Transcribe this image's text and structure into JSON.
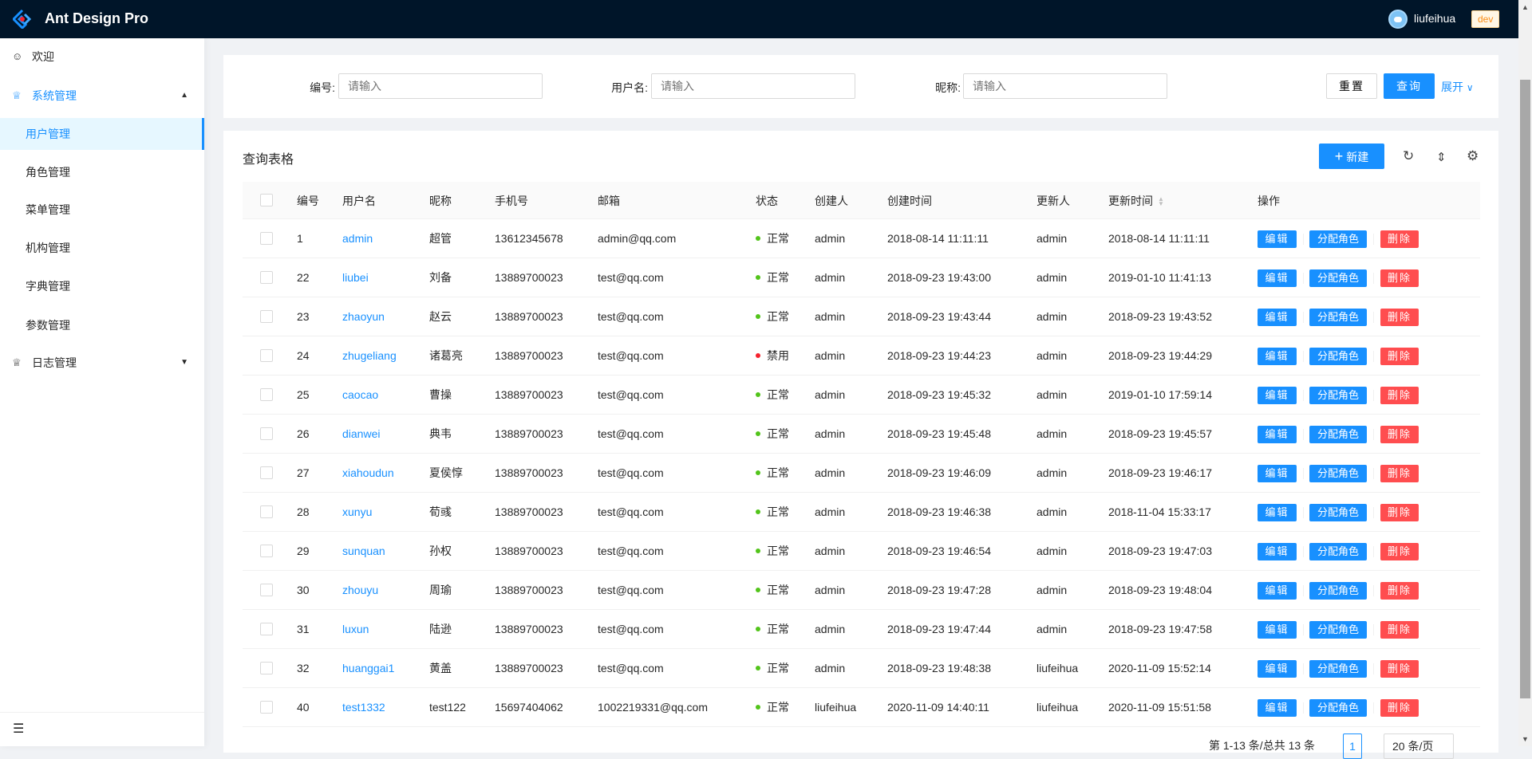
{
  "header": {
    "brand": "Ant Design Pro",
    "username": "liufeihua",
    "env_tag": "dev"
  },
  "sidebar": {
    "items": [
      {
        "label": "欢迎",
        "icon": "smile-icon"
      },
      {
        "label": "系统管理",
        "icon": "crown-icon",
        "expanded": true
      },
      {
        "label": "用户管理",
        "selected": true
      },
      {
        "label": "角色管理"
      },
      {
        "label": "菜单管理"
      },
      {
        "label": "机构管理"
      },
      {
        "label": "字典管理"
      },
      {
        "label": "参数管理"
      },
      {
        "label": "日志管理",
        "icon": "crown-icon",
        "expanded": false
      }
    ]
  },
  "search": {
    "id_label": "编号:",
    "id_placeholder": "请输入",
    "username_label": "用户名:",
    "username_placeholder": "请输入",
    "nickname_label": "昵称:",
    "nickname_placeholder": "请输入",
    "reset": "重置",
    "query": "查询",
    "expand": "展开"
  },
  "table": {
    "title": "查询表格",
    "new_button": "新建",
    "columns": [
      "编号",
      "用户名",
      "昵称",
      "手机号",
      "邮箱",
      "状态",
      "创建人",
      "创建时间",
      "更新人",
      "更新时间",
      "操作"
    ],
    "actions": {
      "edit": "编辑",
      "assign": "分配角色",
      "delete": "删除"
    },
    "status_colors": {
      "正常": "#52c41a",
      "禁用": "#f5222d"
    },
    "rows": [
      [
        "1",
        "admin",
        "超管",
        "13612345678",
        "admin@qq.com",
        "正常",
        "admin",
        "2018-08-14 11:11:11",
        "admin",
        "2018-08-14 11:11:11"
      ],
      [
        "22",
        "liubei",
        "刘备",
        "13889700023",
        "test@qq.com",
        "正常",
        "admin",
        "2018-09-23 19:43:00",
        "admin",
        "2019-01-10 11:41:13"
      ],
      [
        "23",
        "zhaoyun",
        "赵云",
        "13889700023",
        "test@qq.com",
        "正常",
        "admin",
        "2018-09-23 19:43:44",
        "admin",
        "2018-09-23 19:43:52"
      ],
      [
        "24",
        "zhugeliang",
        "诸葛亮",
        "13889700023",
        "test@qq.com",
        "禁用",
        "admin",
        "2018-09-23 19:44:23",
        "admin",
        "2018-09-23 19:44:29"
      ],
      [
        "25",
        "caocao",
        "曹操",
        "13889700023",
        "test@qq.com",
        "正常",
        "admin",
        "2018-09-23 19:45:32",
        "admin",
        "2019-01-10 17:59:14"
      ],
      [
        "26",
        "dianwei",
        "典韦",
        "13889700023",
        "test@qq.com",
        "正常",
        "admin",
        "2018-09-23 19:45:48",
        "admin",
        "2018-09-23 19:45:57"
      ],
      [
        "27",
        "xiahoudun",
        "夏侯惇",
        "13889700023",
        "test@qq.com",
        "正常",
        "admin",
        "2018-09-23 19:46:09",
        "admin",
        "2018-09-23 19:46:17"
      ],
      [
        "28",
        "xunyu",
        "荀彧",
        "13889700023",
        "test@qq.com",
        "正常",
        "admin",
        "2018-09-23 19:46:38",
        "admin",
        "2018-11-04 15:33:17"
      ],
      [
        "29",
        "sunquan",
        "孙权",
        "13889700023",
        "test@qq.com",
        "正常",
        "admin",
        "2018-09-23 19:46:54",
        "admin",
        "2018-09-23 19:47:03"
      ],
      [
        "30",
        "zhouyu",
        "周瑜",
        "13889700023",
        "test@qq.com",
        "正常",
        "admin",
        "2018-09-23 19:47:28",
        "admin",
        "2018-09-23 19:48:04"
      ],
      [
        "31",
        "luxun",
        "陆逊",
        "13889700023",
        "test@qq.com",
        "正常",
        "admin",
        "2018-09-23 19:47:44",
        "admin",
        "2018-09-23 19:47:58"
      ],
      [
        "32",
        "huanggai1",
        "黄盖",
        "13889700023",
        "test@qq.com",
        "正常",
        "admin",
        "2018-09-23 19:48:38",
        "liufeihua",
        "2020-11-09 15:52:14"
      ],
      [
        "40",
        "test1332",
        "test122",
        "15697404062",
        "1002219331@qq.com",
        "正常",
        "liufeihua",
        "2020-11-09 14:40:11",
        "liufeihua",
        "2020-11-09 15:51:58"
      ]
    ]
  },
  "pagination": {
    "summary": "第 1-13 条/总共 13 条",
    "current_page": "1",
    "page_size": "20 条/页"
  }
}
